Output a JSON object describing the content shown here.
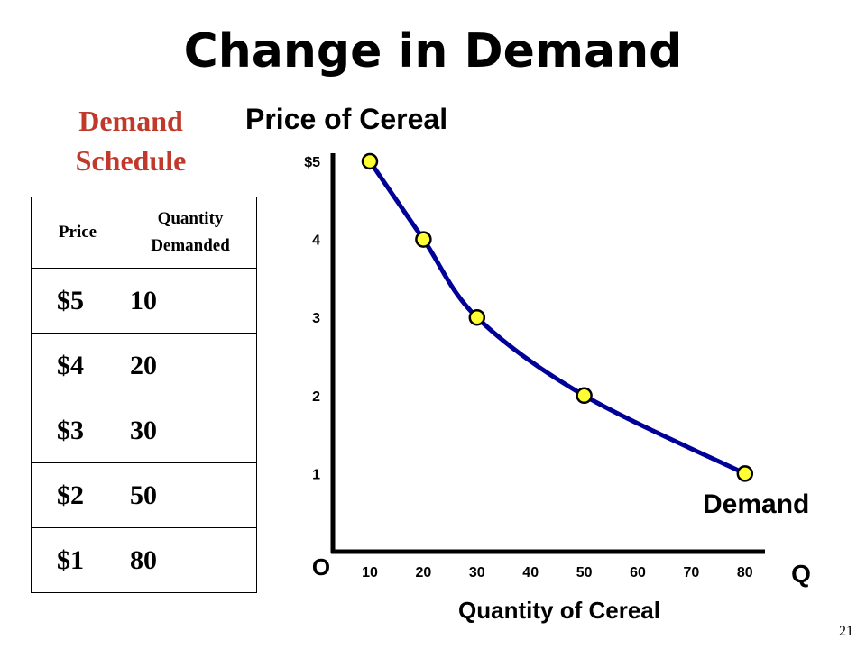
{
  "slide": {
    "title": "Change in Demand",
    "page_number": "21"
  },
  "schedule": {
    "title_line1": "Demand",
    "title_line2": "Schedule",
    "headers": {
      "price": "Price",
      "qty_line1": "Quantity",
      "qty_line2": "Demanded"
    },
    "rows": [
      {
        "price": "$5",
        "qty": "10"
      },
      {
        "price": "$4",
        "qty": "20"
      },
      {
        "price": "$3",
        "qty": "30"
      },
      {
        "price": "$2",
        "qty": "50"
      },
      {
        "price": "$1",
        "qty": "80"
      }
    ]
  },
  "chart_data": {
    "type": "line",
    "ylabel": "Price of Cereal",
    "xlabel": "Quantity of Cereal",
    "origin_label": "O",
    "x_axis_symbol": "Q",
    "series": [
      {
        "name": "Demand",
        "x": [
          10,
          20,
          30,
          50,
          80
        ],
        "y": [
          5,
          4,
          3,
          2,
          1
        ]
      }
    ],
    "x_ticks": [
      "10",
      "20",
      "30",
      "40",
      "50",
      "60",
      "70",
      "80"
    ],
    "y_ticks": [
      "$5",
      "4",
      "3",
      "2",
      "1"
    ],
    "xlim": [
      0,
      80
    ],
    "ylim": [
      0,
      5
    ],
    "grid": false,
    "colors": {
      "curve": "#000099",
      "point_fill": "#ffff33",
      "axis": "#000000"
    }
  }
}
